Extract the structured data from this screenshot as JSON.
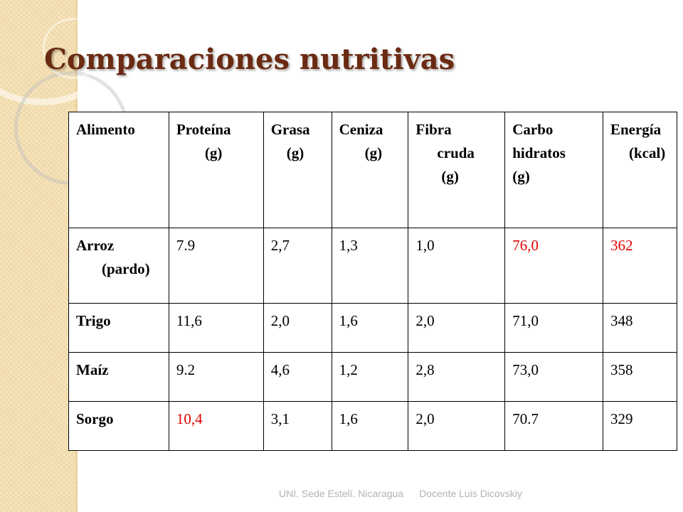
{
  "slide": {
    "title": "Comparaciones nutritivas",
    "footer_left": "UNI. Sede Estelí. Nicaragua",
    "footer_right": "Docente Luis Dicovskiy"
  },
  "table": {
    "headers": [
      {
        "line1": "Alimento",
        "line2": ""
      },
      {
        "line1": "Proteína",
        "line2": "(g)"
      },
      {
        "line1": "Grasa",
        "line2": "(g)"
      },
      {
        "line1": "Ceniza",
        "line2": "(g)"
      },
      {
        "line1": "Fibra",
        "line2": "cruda",
        "line3": "(g)"
      },
      {
        "line1": "Carbo",
        "line2": "hidratos",
        "line3": "(g)"
      },
      {
        "line1": "Energía",
        "line2": "(kcal)"
      }
    ],
    "rows": [
      {
        "food_line1": "Arroz",
        "food_line2": "(pardo)",
        "values": [
          "7.9",
          "2,7",
          "1,3",
          "1,0",
          "76,0",
          "362"
        ]
      },
      {
        "food_line1": "Trigo",
        "food_line2": "",
        "values": [
          "11,6",
          "2,0",
          "1,6",
          "2,0",
          "71,0",
          "348"
        ]
      },
      {
        "food_line1": "Maíz",
        "food_line2": "",
        "values": [
          "9.2",
          "4,6",
          "1,2",
          "2,8",
          "73,0",
          "358"
        ]
      },
      {
        "food_line1": "Sorgo",
        "food_line2": "",
        "values": [
          "10,4",
          "3,1",
          "1,6",
          "2,0",
          "70.7",
          "329"
        ]
      }
    ],
    "highlight_color": "#e00000"
  }
}
